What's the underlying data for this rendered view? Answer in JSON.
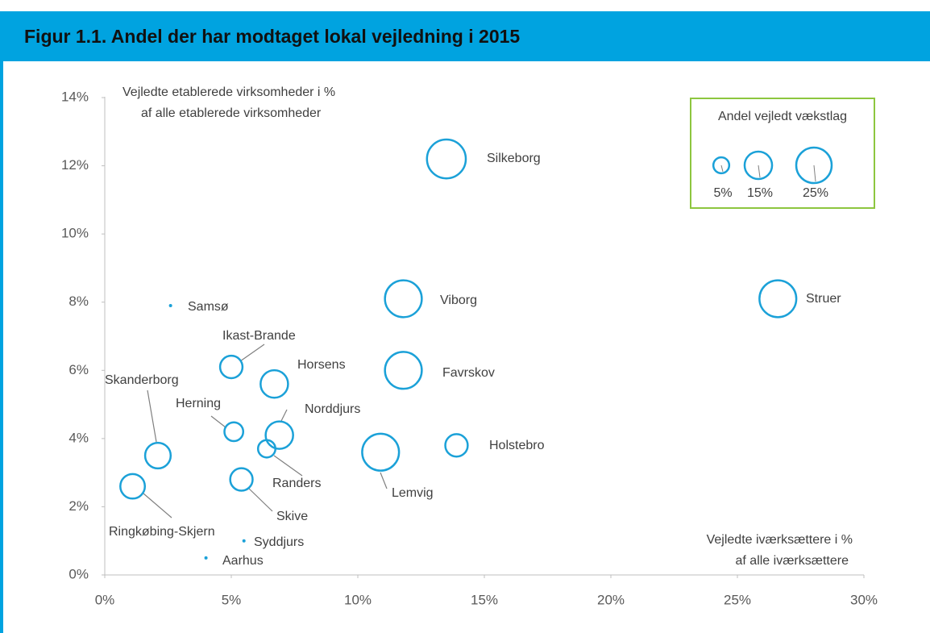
{
  "chart_data": {
    "type": "bubble",
    "title": "Figur 1.1. Andel der har modtaget lokal vejledning i 2015",
    "y_label": [
      "Vejledte etablerede virksomheder i %",
      "af alle etablerede virksomheder"
    ],
    "x_label": [
      "Vejledte iværksættere i %",
      "af alle iværksættere"
    ],
    "legend_title": "Andel vejledt vækstlag",
    "legend_sizes": [
      5,
      15,
      25
    ],
    "legend_size_labels": [
      "5%",
      "15%",
      "25%"
    ],
    "color": "#1ba1d8",
    "series": [
      {
        "names": [
          "Silkeborg",
          "Viborg",
          "Struer",
          "Favrskov",
          "Lemvig",
          "Holstebro",
          "Samsø",
          "Ikast-Brande",
          "Horsens",
          "Skanderborg",
          "Herning",
          "Norddjurs",
          "Randers",
          "Skive",
          "Ringkøbing-Skjern",
          "Syddjurs",
          "Aarhus"
        ],
        "x": [
          13.5,
          11.8,
          26.6,
          11.8,
          10.9,
          13.9,
          2.6,
          5.0,
          6.7,
          2.1,
          5.1,
          6.9,
          6.4,
          5.4,
          1.1,
          5.5,
          4.0
        ],
        "values": [
          12.2,
          8.1,
          8.1,
          6.0,
          3.6,
          3.8,
          7.9,
          6.1,
          5.6,
          3.5,
          4.2,
          4.1,
          3.7,
          2.8,
          2.6,
          1.0,
          0.5
        ],
        "sizes": [
          30,
          27,
          27,
          27,
          27,
          10,
          0.3,
          10,
          15,
          13,
          7,
          15,
          6,
          10,
          12,
          0.3,
          0.3
        ]
      }
    ],
    "xlim": [
      0,
      30
    ],
    "ylim": [
      0,
      14
    ],
    "xticks": [
      {
        "value": 0,
        "label": "0%"
      },
      {
        "value": 5,
        "label": "5%"
      },
      {
        "value": 10,
        "label": "10%"
      },
      {
        "value": 15,
        "label": "15%"
      },
      {
        "value": 20,
        "label": "20%"
      },
      {
        "value": 25,
        "label": "25%"
      },
      {
        "value": 30,
        "label": "30%"
      }
    ],
    "yticks": [
      {
        "value": 0,
        "label": "0%"
      },
      {
        "value": 2,
        "label": "2%"
      },
      {
        "value": 4,
        "label": "4%"
      },
      {
        "value": 6,
        "label": "6%"
      },
      {
        "value": 8,
        "label": "8%"
      },
      {
        "value": 10,
        "label": "10%"
      },
      {
        "value": 12,
        "label": "12%"
      },
      {
        "value": 14,
        "label": "14%"
      }
    ]
  }
}
